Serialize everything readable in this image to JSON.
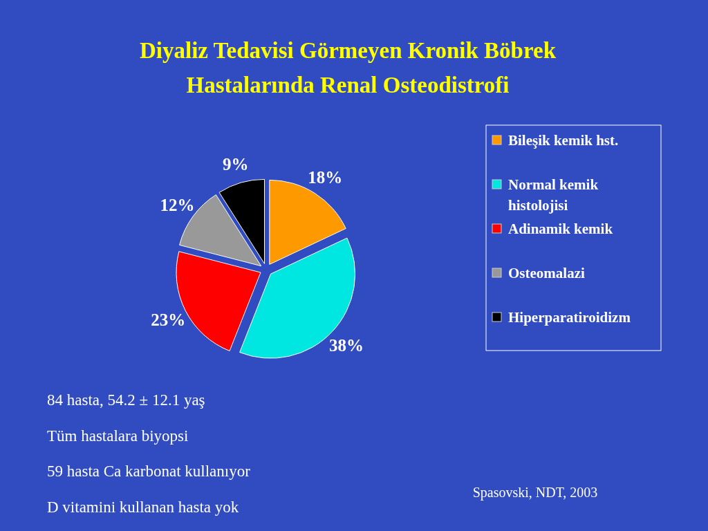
{
  "chart_data": {
    "type": "pie",
    "title": "Diyaliz Tedavisi Görmeyen Kronik Böbrek Hastalarında Renal Osteodistrofi",
    "categories": [
      "Bileşik kemik hst.",
      "Normal kemik histolojisi",
      "Adinamik kemik",
      "Osteomalazi",
      "Hiperparatiroidizm"
    ],
    "values": [
      18,
      38,
      23,
      12,
      9
    ],
    "colors": [
      "#ff9900",
      "#00e6e0",
      "#ff0000",
      "#999999",
      "#000000"
    ],
    "value_labels": [
      "18%",
      "38%",
      "23%",
      "12%",
      "9%"
    ],
    "legend": "right",
    "annotations": [
      "84 hasta, 54.2 ± 12.1 yaş",
      "Tüm hastalara biyopsi",
      "59 hasta Ca karbonat kullanıyor",
      "D vitamini kullanan hasta yok",
      "Spasovski, NDT, 2003"
    ]
  }
}
